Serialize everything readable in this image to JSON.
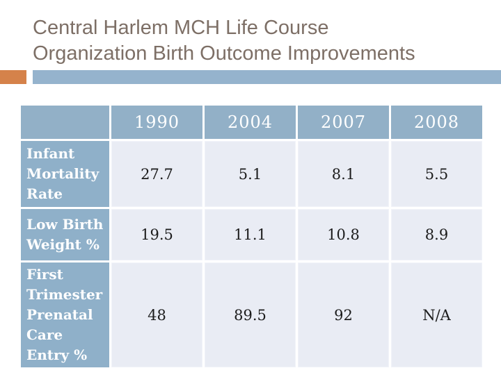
{
  "slide": {
    "title_lines": [
      "Central Harlem MCH Life Course",
      "Organization Birth Outcome Improvements"
    ]
  },
  "colors": {
    "title_text": "#7d6f66",
    "accent_orange": "#d5824a",
    "accent_blue": "#95b3cd",
    "header_cell_blue": "#92b0c7",
    "label_cell_blue": "#8fb0c9",
    "data_cell_lavender": "#e9ecf4",
    "header_text": "#ffffff",
    "data_text": "#1c1c1c"
  },
  "table": {
    "corner_label": "",
    "columns": [
      "1990",
      "2004",
      "2007",
      "2008"
    ],
    "rows": [
      {
        "label": "Infant Mortality Rate",
        "values": [
          "27.7",
          "5.1",
          "8.1",
          "5.5"
        ]
      },
      {
        "label": "Low Birth Weight %",
        "values": [
          "19.5",
          "11.1",
          "10.8",
          "8.9"
        ]
      },
      {
        "label": "First Trimester Prenatal Care Entry %",
        "values": [
          "48",
          "89.5",
          "92",
          "N/A"
        ]
      }
    ]
  }
}
